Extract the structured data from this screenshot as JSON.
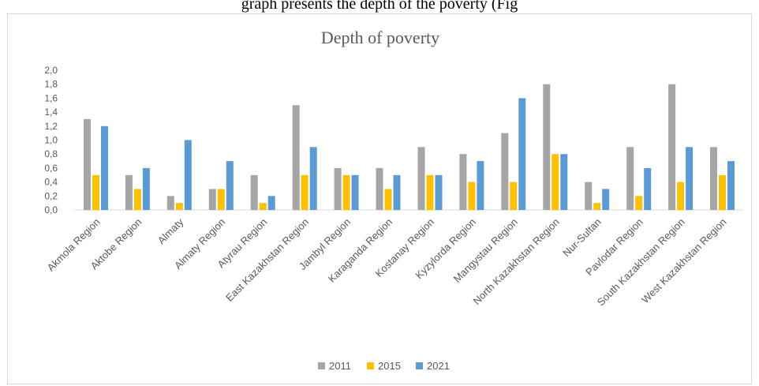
{
  "header_text": "graph presents the depth of the poverty (Fig",
  "colors": {
    "2011": "#a5a5a5",
    "2015": "#ffc000",
    "2021": "#5b9bd5"
  },
  "chart_data": {
    "type": "bar",
    "title": "Depth of poverty",
    "xlabel": "",
    "ylabel": "",
    "ylim": [
      0,
      2.0
    ],
    "yticks": [
      "0,0",
      "0,2",
      "0,4",
      "0,6",
      "0,8",
      "1,0",
      "1,2",
      "1,4",
      "1,6",
      "1,8",
      "2,0"
    ],
    "grid": false,
    "legend": "bottom",
    "categories": [
      "Akmola Region",
      "Aktobe Region",
      "Almaty",
      "Almaty Region",
      "Atyrau Region",
      "East Kazakhstan Region",
      "Jambyl Region",
      "Karaganda Region",
      "Kostanay Region",
      "Kyzylorda Region",
      "Mangystau Region",
      "North Kazakhstan Region",
      "Nur-Sultan",
      "Pavlodar Region",
      "South Kazakhstan Region",
      "West Kazakhstan Region"
    ],
    "series": [
      {
        "name": "2011",
        "values": [
          1.3,
          0.5,
          0.2,
          0.3,
          0.5,
          1.5,
          0.6,
          0.6,
          0.9,
          0.8,
          1.1,
          1.8,
          0.4,
          0.9,
          1.8,
          0.9
        ]
      },
      {
        "name": "2015",
        "values": [
          0.5,
          0.3,
          0.1,
          0.3,
          0.1,
          0.5,
          0.5,
          0.3,
          0.5,
          0.4,
          0.4,
          0.8,
          0.1,
          0.2,
          0.4,
          0.5
        ]
      },
      {
        "name": "2021",
        "values": [
          1.2,
          0.6,
          1.0,
          0.7,
          0.2,
          0.9,
          0.5,
          0.5,
          0.5,
          0.7,
          1.6,
          0.8,
          0.3,
          0.6,
          0.9,
          0.7
        ]
      }
    ]
  }
}
